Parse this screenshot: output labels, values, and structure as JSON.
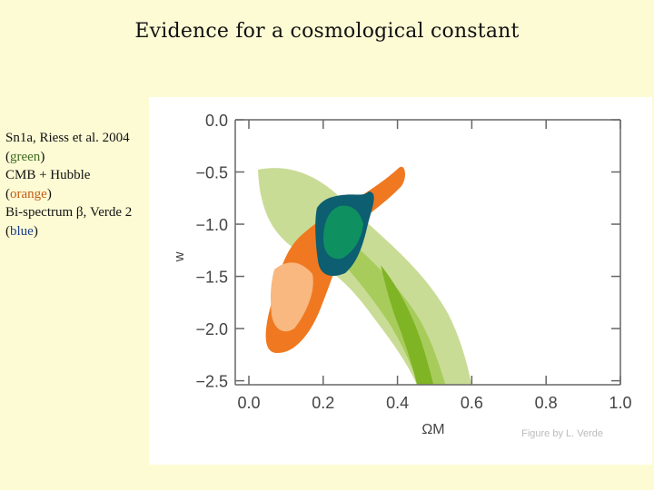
{
  "slide": {
    "title": "Evidence for a cosmological constant"
  },
  "caption": {
    "line1": "Sn1a, Riess et al. 2004",
    "line2_open": "(",
    "line2_word": "green",
    "line2_close": ")",
    "line3": "CMB + Hubble",
    "line4_open": "(",
    "line4_word": "orange",
    "line4_close": ")",
    "line5": "Bi-spectrum β, Verde 2",
    "line6_open": "(",
    "line6_word": "blue",
    "line6_close": ")"
  },
  "figure": {
    "credit": "Figure by L. Verde",
    "colors": {
      "sn_outer": "#c9dc96",
      "sn_mid": "#a8cc5c",
      "sn_inner": "#7fb424",
      "cmb_outer": "#f07820",
      "cmb_inner": "#f8b880",
      "bispec_outer": "#0c5e70",
      "bispec_inner": "#0f9060"
    }
  },
  "chart_data": {
    "type": "contour",
    "xlabel": "ΩM",
    "ylabel": "w",
    "xlim": [
      0.0,
      1.0
    ],
    "ylim": [
      -2.5,
      0.0
    ],
    "x_ticks": [
      "0.0",
      "0.2",
      "0.4",
      "0.6",
      "0.8",
      "1.0"
    ],
    "y_ticks": [
      "0.0",
      "−0.5",
      "−1.0",
      "−1.5",
      "−2.0",
      "−2.5"
    ],
    "regions": [
      {
        "name": "Sn1a (green)",
        "omega_m_at_w_minus_1": 0.33,
        "extends_to_omega_m_at_w_minus_2_5": 0.55
      },
      {
        "name": "CMB + Hubble (orange)",
        "omega_m_range": [
          0.07,
          0.38
        ],
        "w_range": [
          -2.2,
          -0.55
        ]
      },
      {
        "name": "Bi-spectrum (blue)",
        "omega_m_range": [
          0.19,
          0.33
        ],
        "w_range": [
          -1.4,
          -0.65
        ]
      }
    ]
  }
}
